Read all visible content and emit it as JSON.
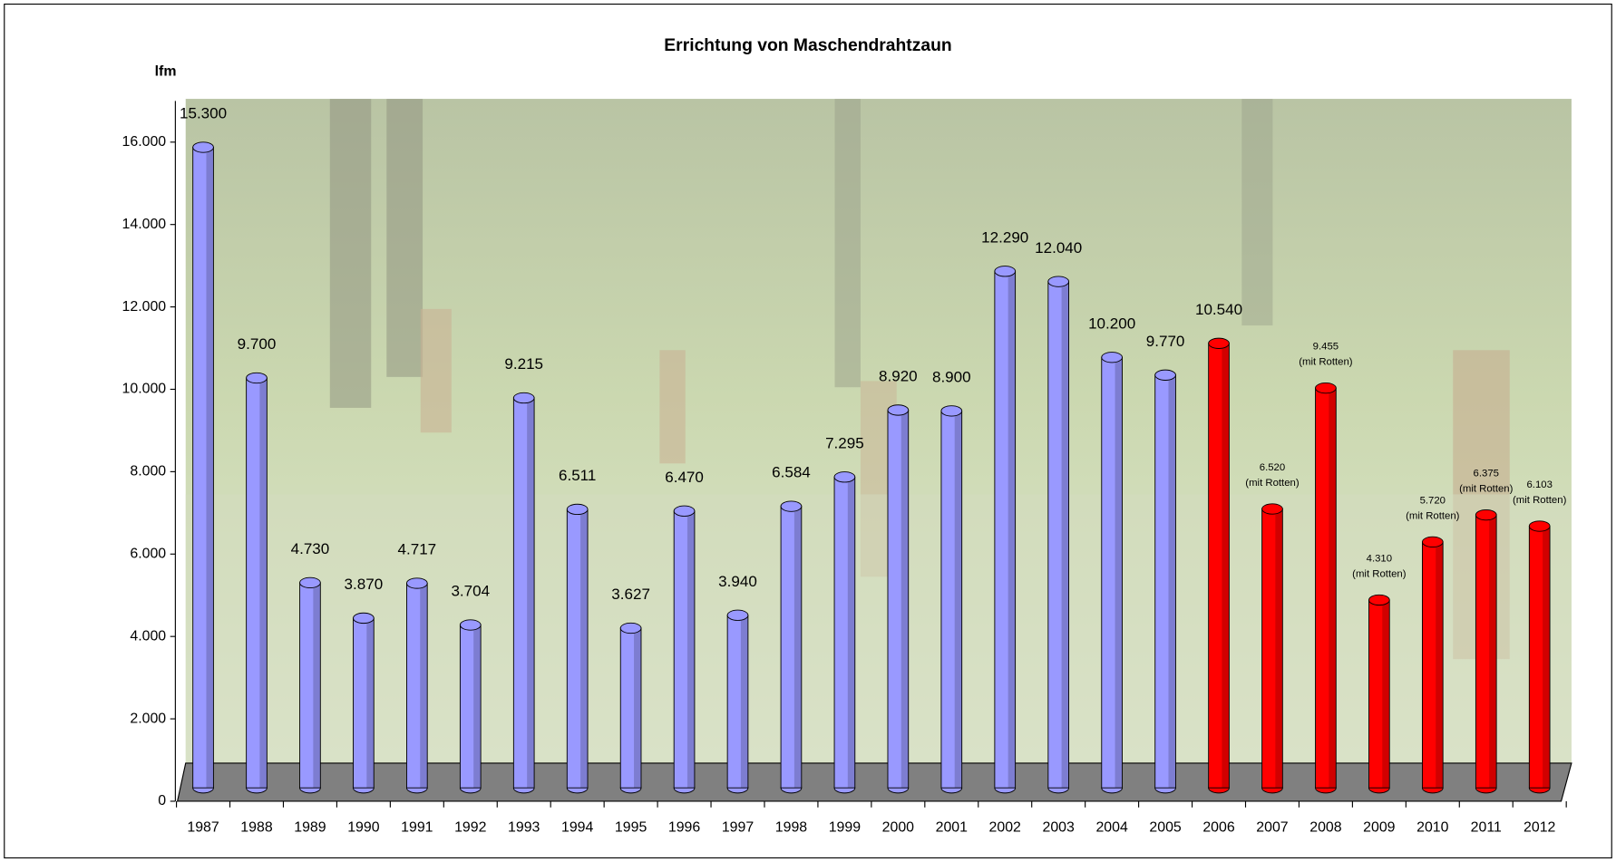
{
  "chart_data": {
    "type": "bar3d",
    "title": "Errichtung von Maschendrahtzaun",
    "y_label": "lfm",
    "categories": [
      "1987",
      "1988",
      "1989",
      "1990",
      "1991",
      "1992",
      "1993",
      "1994",
      "1995",
      "1996",
      "1997",
      "1998",
      "1999",
      "2000",
      "2001",
      "2002",
      "2003",
      "2004",
      "2005",
      "2006",
      "2007",
      "2008",
      "2009",
      "2010",
      "2011",
      "2012"
    ],
    "values": [
      15300,
      9700,
      4730,
      3870,
      4717,
      3704,
      9215,
      6511,
      3627,
      6470,
      3940,
      6584,
      7295,
      8920,
      8900,
      12290,
      12040,
      10200,
      9770,
      10540,
      6520,
      9455,
      4310,
      5720,
      6375,
      6103
    ],
    "value_labels": [
      "15.300",
      "9.700",
      "4.730",
      "3.870",
      "4.717",
      "3.704",
      "9.215",
      "6.511",
      "3.627",
      "6.470",
      "3.940",
      "6.584",
      "7.295",
      "8.920",
      "8.900",
      "12.290",
      "12.040",
      "10.200",
      "9.770",
      "10.540",
      "6.520",
      "9.455",
      "4.310",
      "5.720",
      "6.375",
      "6.103"
    ],
    "value_notes": [
      null,
      null,
      null,
      null,
      null,
      null,
      null,
      null,
      null,
      null,
      null,
      null,
      null,
      null,
      null,
      null,
      null,
      null,
      null,
      null,
      "(mit Rotten)",
      "(mit Rotten)",
      "(mit Rotten)",
      "(mit Rotten)",
      "(mit Rotten)",
      "(mit Rotten)"
    ],
    "colors": [
      "#9999ff",
      "#9999ff",
      "#9999ff",
      "#9999ff",
      "#9999ff",
      "#9999ff",
      "#9999ff",
      "#9999ff",
      "#9999ff",
      "#9999ff",
      "#9999ff",
      "#9999ff",
      "#9999ff",
      "#9999ff",
      "#9999ff",
      "#9999ff",
      "#9999ff",
      "#9999ff",
      "#9999ff",
      "#ff0000",
      "#ff0000",
      "#ff0000",
      "#ff0000",
      "#ff0000",
      "#ff0000",
      "#ff0000"
    ],
    "ylim": [
      0,
      17000
    ],
    "yticks": [
      0,
      {
        "value": 2000,
        "label": "2.000"
      },
      {
        "value": 4000,
        "label": "4.000"
      },
      {
        "value": 6000,
        "label": "6.000"
      },
      {
        "value": 8000,
        "label": "8.000"
      },
      {
        "value": 10000,
        "label": "10.000"
      },
      {
        "value": 12000,
        "label": "12.000"
      },
      {
        "value": 14000,
        "label": "14.000"
      },
      {
        "value": 16000,
        "label": "16.000"
      }
    ]
  }
}
